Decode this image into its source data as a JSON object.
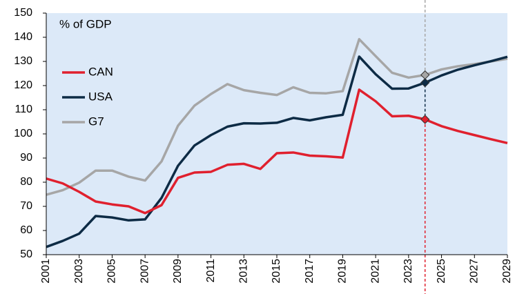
{
  "chart_data": {
    "type": "line",
    "annotation": "% of GDP",
    "x": [
      2001,
      2002,
      2003,
      2004,
      2005,
      2006,
      2007,
      2008,
      2009,
      2010,
      2011,
      2012,
      2013,
      2014,
      2015,
      2016,
      2017,
      2018,
      2019,
      2020,
      2021,
      2022,
      2023,
      2024,
      2025,
      2026,
      2027,
      2028,
      2029
    ],
    "series": [
      {
        "name": "CAN",
        "color": "#e0202e",
        "values": [
          81.5,
          79.5,
          76,
          72,
          70.8,
          70,
          67.2,
          70.5,
          81.8,
          84,
          84.3,
          87.2,
          87.6,
          85.5,
          92,
          92.3,
          91,
          90.7,
          90.2,
          118.3,
          113.5,
          107.3,
          107.5,
          106,
          103.2,
          101.2,
          99.5,
          97.8,
          96.2
        ]
      },
      {
        "name": "USA",
        "color": "#0d2b45",
        "values": [
          53.2,
          55.7,
          58.7,
          66,
          65.4,
          64.2,
          64.6,
          73.5,
          86.8,
          95.2,
          99.5,
          103,
          104.4,
          104.3,
          104.6,
          106.6,
          105.6,
          106.9,
          107.9,
          132,
          124.7,
          118.7,
          118.8,
          121.2,
          124.2,
          126.6,
          128.4,
          130.1,
          131.9
        ]
      },
      {
        "name": "G7",
        "color": "#a6a6a6",
        "values": [
          74.8,
          76.7,
          79.8,
          84.8,
          84.8,
          82.3,
          80.7,
          88.6,
          103.4,
          111.7,
          116.5,
          120.6,
          118.1,
          117,
          116.1,
          119.3,
          117,
          116.8,
          117.7,
          139.2,
          132.2,
          125.3,
          123.3,
          124.4,
          126.7,
          128,
          128.9,
          130,
          131.1
        ]
      }
    ],
    "highlight_x": 2024,
    "xlim": [
      2001,
      2029
    ],
    "xticks": [
      2001,
      2003,
      2005,
      2007,
      2009,
      2011,
      2013,
      2015,
      2017,
      2019,
      2021,
      2023,
      2025,
      2027,
      2029
    ],
    "ylim": [
      50,
      150
    ],
    "yticks": [
      50,
      60,
      70,
      80,
      90,
      100,
      110,
      120,
      130,
      140,
      150
    ],
    "legend": "upper-left",
    "background": "#dce9f8"
  }
}
